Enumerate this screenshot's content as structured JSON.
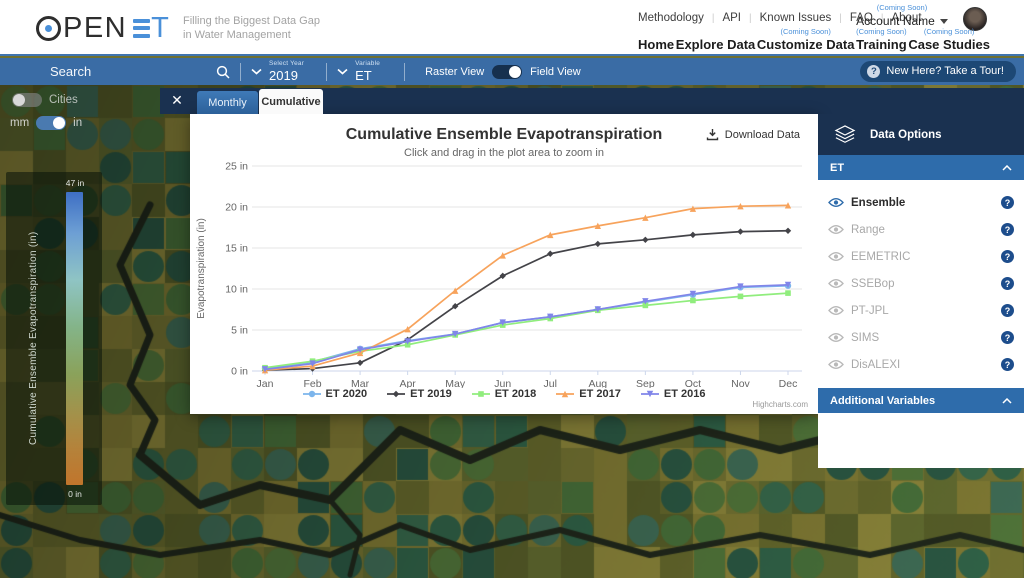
{
  "header": {
    "logo": {
      "open": "PEN",
      "et_t": "T",
      "tagline1": "Filling the Biggest Data Gap",
      "tagline2": "in Water Management"
    },
    "top_links": [
      "Methodology",
      "API",
      "Known Issues",
      "FAQ",
      "About"
    ],
    "account": {
      "coming_soon": "(Coming Soon)",
      "name": "Account Name"
    },
    "nav": [
      {
        "label": "Home",
        "coming_soon": ""
      },
      {
        "label": "Explore Data",
        "coming_soon": ""
      },
      {
        "label": "Customize Data",
        "coming_soon": "(Coming Soon)"
      },
      {
        "label": "Training",
        "coming_soon": "(Coming Soon)"
      },
      {
        "label": "Case Studies",
        "coming_soon": "(Coming Soon)"
      }
    ]
  },
  "toolbar": {
    "search_placeholder": "Search",
    "year_label": "Select Year",
    "year_value": "2019",
    "variable_label": "Variable",
    "variable_value": "ET",
    "raster_label": "Raster View",
    "field_label": "Field View",
    "tour_label": "New Here? Take a Tour!",
    "tour_q": "?"
  },
  "map_controls": {
    "cities_label": "Cities",
    "unit_mm": "mm",
    "unit_in": "in",
    "scale_max": "47 in",
    "scale_min": "0 in",
    "scale_title": "Cumulative Ensemble Evapotranspiration (in)"
  },
  "modal": {
    "close": "✕",
    "tabs": [
      {
        "label": "Monthly",
        "active": false
      },
      {
        "label": "Cumulative",
        "active": true
      }
    ],
    "download_label": "Download Data",
    "credit": "Highcharts.com"
  },
  "chart_data": {
    "type": "line",
    "title": "Cumulative Ensemble Evapotranspiration",
    "subtitle": "Click and drag in the plot area to zoom in",
    "ylabel": "Evapotranspiration (in)",
    "xlabel": "",
    "categories": [
      "Jan",
      "Feb",
      "Mar",
      "Apr",
      "May",
      "Jun",
      "Jul",
      "Aug",
      "Sep",
      "Oct",
      "Nov",
      "Dec"
    ],
    "ylim": [
      0,
      25
    ],
    "ytick_step": 5,
    "ytick_labels": [
      "0 in",
      "5 in",
      "10 in",
      "15 in",
      "20 in",
      "25 in"
    ],
    "grid": true,
    "legend_position": "bottom",
    "series": [
      {
        "name": "ET 2020",
        "color": "#7cb5ec",
        "marker": "circle",
        "values": [
          0.3,
          1.1,
          2.7,
          3.7,
          4.5,
          5.9,
          6.6,
          7.5,
          8.4,
          9.3,
          10.2,
          10.4
        ]
      },
      {
        "name": "ET 2019",
        "color": "#434348",
        "marker": "diamond",
        "values": [
          0.1,
          0.3,
          1.0,
          3.8,
          7.9,
          11.6,
          14.3,
          15.5,
          16.0,
          16.6,
          17.0,
          17.1
        ]
      },
      {
        "name": "ET 2018",
        "color": "#90ed7d",
        "marker": "square",
        "values": [
          0.4,
          1.2,
          2.4,
          3.2,
          4.4,
          5.6,
          6.4,
          7.4,
          8.0,
          8.6,
          9.1,
          9.5
        ]
      },
      {
        "name": "ET 2017",
        "color": "#f7a35c",
        "marker": "triangle",
        "values": [
          0.1,
          0.6,
          2.2,
          5.1,
          9.8,
          14.1,
          16.6,
          17.7,
          18.7,
          19.8,
          20.1,
          20.2
        ]
      },
      {
        "name": "ET 2016",
        "color": "#8085e9",
        "marker": "triangle-down",
        "values": [
          0.2,
          0.9,
          2.6,
          3.6,
          4.5,
          5.9,
          6.6,
          7.5,
          8.5,
          9.4,
          10.3,
          10.5
        ]
      }
    ]
  },
  "sidebar": {
    "header": "Data Options",
    "section_et": "ET",
    "items": [
      {
        "label": "Ensemble",
        "active": true
      },
      {
        "label": "Range",
        "active": false
      },
      {
        "label": "EEMETRIC",
        "active": false
      },
      {
        "label": "SSEBop",
        "active": false
      },
      {
        "label": "PT-JPL",
        "active": false
      },
      {
        "label": "SIMS",
        "active": false
      },
      {
        "label": "DisALEXI",
        "active": false
      }
    ],
    "section_additional": "Additional Variables",
    "help_q": "?"
  },
  "colors": {
    "toolbar_blue": "#3a6ca5",
    "navy": "#1a3150",
    "section_blue": "#2e6cab",
    "brand_blue": "#4a90d9",
    "badge_blue": "#1d4d8c",
    "map_base": [
      "#7d7c36",
      "#6e7130",
      "#8b8438",
      "#5f662c",
      "#97903f",
      "#6a7434"
    ],
    "map_fields": [
      "#3c7152",
      "#2f5f49",
      "#4e7a3f",
      "#45755d",
      "#587f3f",
      "#356b4e"
    ],
    "map_river": "#232b1e"
  }
}
